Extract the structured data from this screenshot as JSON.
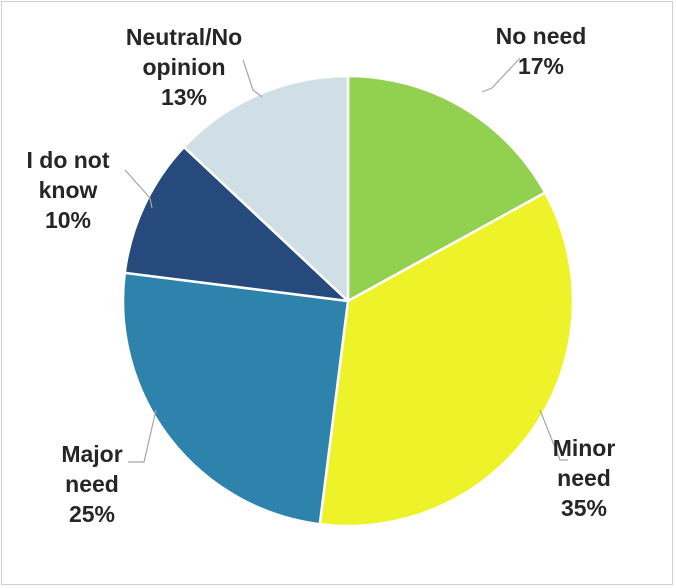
{
  "chart_data": {
    "type": "pie",
    "title": "",
    "start_angle_deg": 0,
    "direction": "clockwise",
    "slices": [
      {
        "label_lines": [
          "No need"
        ],
        "label": "No need",
        "percent_label": "17%",
        "value": 17,
        "color": "#92d050"
      },
      {
        "label_lines": [
          "Minor",
          "need"
        ],
        "label": "Minor need",
        "percent_label": "35%",
        "value": 35,
        "color": "#eef228"
      },
      {
        "label_lines": [
          "Major",
          "need"
        ],
        "label": "Major need",
        "percent_label": "25%",
        "value": 25,
        "color": "#2e83ad"
      },
      {
        "label_lines": [
          "I do not",
          "know"
        ],
        "label": "I do not know",
        "percent_label": "10%",
        "value": 10,
        "color": "#254a7b"
      },
      {
        "label_lines": [
          "Neutral/No",
          "opinion"
        ],
        "label": "Neutral/No opinion",
        "percent_label": "13%",
        "value": 13,
        "color": "#d0dfe6"
      }
    ],
    "legend": "none",
    "data_labels": "outside-with-leader-lines"
  }
}
